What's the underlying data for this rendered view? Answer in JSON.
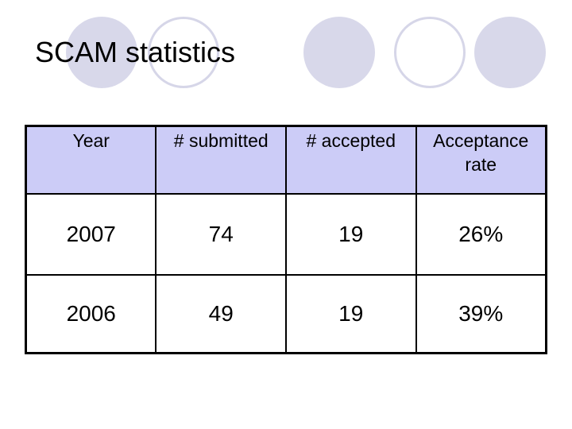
{
  "slide": {
    "title": "SCAM statistics"
  },
  "table": {
    "headers": [
      "Year",
      "# submitted",
      "# accepted",
      "Acceptance rate"
    ],
    "rows": [
      [
        "2007",
        "74",
        "19",
        "26%"
      ],
      [
        "2006",
        "49",
        "19",
        "39%"
      ]
    ]
  },
  "decor": {
    "circle_fill_color": "#d8d8ea",
    "circle_outline_color": "#d6d6e8",
    "header_background_color": "#ccccf7",
    "border_color": "#000000"
  },
  "chart_data": {
    "type": "table",
    "title": "SCAM statistics",
    "columns": [
      "Year",
      "# submitted",
      "# accepted",
      "Acceptance rate"
    ],
    "rows": [
      [
        "2007",
        74,
        19,
        "26%"
      ],
      [
        "2006",
        49,
        19,
        "39%"
      ]
    ]
  }
}
